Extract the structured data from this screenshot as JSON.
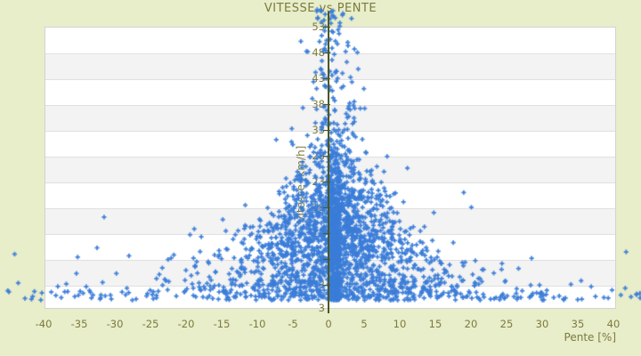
{
  "title": "VITESSE vs PENTE",
  "colors": {
    "background": "#e8edca",
    "plot_background": "#ffffff",
    "band_alt": "#f3f3f3",
    "gridline": "#e0e0e0",
    "border": "#d3d3d3",
    "text": "#7b7b3c",
    "axis_line": "#4d5722",
    "marker": "#3b7dd8"
  },
  "chart_data": {
    "type": "scatter",
    "title": "VITESSE vs PENTE",
    "xlabel": "Pente [%]",
    "ylabel": "Vitesse [km/h]",
    "xlim": [
      -40,
      40.4
    ],
    "ylim": [
      -1.7,
      53
    ],
    "x_ticks": [
      -40,
      -35,
      -30,
      -25,
      -20,
      -15,
      -10,
      -5,
      0,
      5,
      10,
      15,
      20,
      25,
      30,
      35,
      40
    ],
    "y_ticks": [
      53,
      48,
      43,
      38,
      33,
      28,
      23,
      18,
      13,
      8,
      3
    ],
    "y_axis_end_label": "3",
    "grid": "horizontal-bands",
    "legend": "none",
    "y_axis_position_x": 0,
    "marker": "plus",
    "description": "Dense cloud of speed-vs-slope samples: slope concentrated near 0%, spread widens as speed decreases (funnel shape); speeds mostly 3-30 km/h, up to ~55 km/h near 0% slope; sparse outliers beyond +/-40% slope at very low speed.",
    "distribution": {
      "n_points": 2800,
      "seed": 20240,
      "speed_mean": 10,
      "speed_sd": 9,
      "uniform_speed_frac": 0.1,
      "bottom_line_frac": 0.035,
      "core_column_frac": 0.22,
      "slope_mean_offset": 0.8,
      "slope_sigma_base": 1.6,
      "slope_sigma_scale": 12,
      "slope_sigma_decay": 12,
      "tail_frac_scale": 0.22,
      "slope_clip": 46
    }
  }
}
